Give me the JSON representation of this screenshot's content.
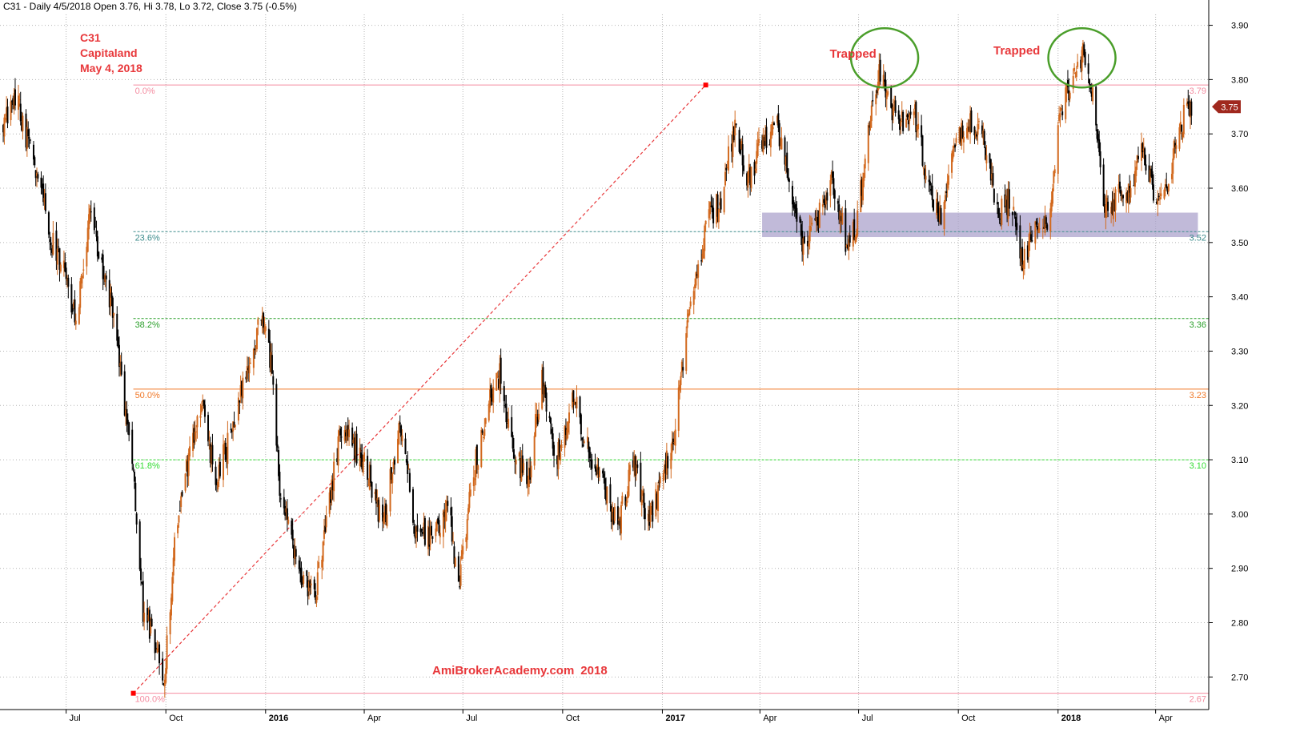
{
  "header": {
    "symbol": "C31",
    "text": "C31 - Daily 4/5/2018 Open 3.76, Hi 3.78, Lo 3.72, Close 3.75 (-0.5%)"
  },
  "title_lines": [
    "C31",
    "Capitaland",
    "May 4, 2018"
  ],
  "annotations": [
    {
      "text": "Trapped",
      "date": "2017-06-28",
      "price": 3.845
    },
    {
      "text": "Trapped",
      "date": "2017-11-26",
      "price": 3.85
    }
  ],
  "watermark": {
    "site": "AmiBrokerAcademy.com",
    "year": "2018"
  },
  "colors": {
    "up_candle": "#d2691e",
    "down_candle": "#000000",
    "grid": "#b4b4b4",
    "fib_0": "#f48ca0",
    "fib_236": "#3c8c8c",
    "fib_382": "#2ca02c",
    "fib_50": "#f07828",
    "fib_618": "#32dc32",
    "fib_100": "#f48ca0",
    "trend_line": "#e8383b",
    "zone": "#aca3cc",
    "circle": "#4a9e2a",
    "last_price_badge": "#a0281e"
  },
  "chart_data": {
    "type": "candlestick",
    "symbol": "C31",
    "ylim": [
      2.64,
      3.92
    ],
    "xlim": [
      "2015-05-01",
      "2018-05-20"
    ],
    "yticks": [
      3.9,
      3.8,
      3.7,
      3.6,
      3.5,
      3.4,
      3.3,
      3.2,
      3.1,
      3.0,
      2.9,
      2.8,
      2.7
    ],
    "xticks": [
      {
        "label": "Jul",
        "date": "2015-07-01"
      },
      {
        "label": "Oct",
        "date": "2015-10-01"
      },
      {
        "label": "2016",
        "date": "2016-01-01"
      },
      {
        "label": "Apr",
        "date": "2016-04-01"
      },
      {
        "label": "Jul",
        "date": "2016-07-01"
      },
      {
        "label": "Oct",
        "date": "2016-10-01"
      },
      {
        "label": "2017",
        "date": "2017-01-01"
      },
      {
        "label": "Apr",
        "date": "2017-04-01"
      },
      {
        "label": "Jul",
        "date": "2017-07-01"
      },
      {
        "label": "Oct",
        "date": "2017-10-01"
      },
      {
        "label": "2018",
        "date": "2018-01-01"
      },
      {
        "label": "Apr",
        "date": "2018-04-01"
      }
    ],
    "grid": true,
    "last": {
      "date": "2018-05-04",
      "open": 3.76,
      "high": 3.78,
      "low": 3.72,
      "close": 3.75,
      "change_pct": -0.5,
      "badge": "3.75"
    },
    "close_path": [
      {
        "date": "2015-05-04",
        "close": 3.72
      },
      {
        "date": "2015-05-14",
        "close": 3.78
      },
      {
        "date": "2015-05-27",
        "close": 3.68
      },
      {
        "date": "2015-06-05",
        "close": 3.63
      },
      {
        "date": "2015-06-18",
        "close": 3.5
      },
      {
        "date": "2015-06-30",
        "close": 3.45
      },
      {
        "date": "2015-07-10",
        "close": 3.35
      },
      {
        "date": "2015-07-22",
        "close": 3.55
      },
      {
        "date": "2015-08-03",
        "close": 3.46
      },
      {
        "date": "2015-08-14",
        "close": 3.37
      },
      {
        "date": "2015-08-25",
        "close": 3.18
      },
      {
        "date": "2015-09-02",
        "close": 3.05
      },
      {
        "date": "2015-09-10",
        "close": 2.82
      },
      {
        "date": "2015-09-22",
        "close": 2.76
      },
      {
        "date": "2015-09-30",
        "close": 2.7
      },
      {
        "date": "2015-10-09",
        "close": 2.95
      },
      {
        "date": "2015-10-20",
        "close": 3.08
      },
      {
        "date": "2015-11-03",
        "close": 3.2
      },
      {
        "date": "2015-11-16",
        "close": 3.06
      },
      {
        "date": "2015-11-30",
        "close": 3.15
      },
      {
        "date": "2015-12-14",
        "close": 3.25
      },
      {
        "date": "2015-12-28",
        "close": 3.37
      },
      {
        "date": "2016-01-06",
        "close": 3.28
      },
      {
        "date": "2016-01-14",
        "close": 3.05
      },
      {
        "date": "2016-01-25",
        "close": 2.95
      },
      {
        "date": "2016-02-05",
        "close": 2.88
      },
      {
        "date": "2016-02-15",
        "close": 2.85
      },
      {
        "date": "2016-02-25",
        "close": 2.96
      },
      {
        "date": "2016-03-09",
        "close": 3.15
      },
      {
        "date": "2016-03-24",
        "close": 3.12
      },
      {
        "date": "2016-04-06",
        "close": 3.07
      },
      {
        "date": "2016-04-18",
        "close": 2.97
      },
      {
        "date": "2016-05-04",
        "close": 3.18
      },
      {
        "date": "2016-05-18",
        "close": 2.97
      },
      {
        "date": "2016-06-02",
        "close": 2.95
      },
      {
        "date": "2016-06-17",
        "close": 3.02
      },
      {
        "date": "2016-06-27",
        "close": 2.87
      },
      {
        "date": "2016-07-11",
        "close": 3.08
      },
      {
        "date": "2016-07-25",
        "close": 3.2
      },
      {
        "date": "2016-08-04",
        "close": 3.26
      },
      {
        "date": "2016-08-17",
        "close": 3.1
      },
      {
        "date": "2016-08-31",
        "close": 3.07
      },
      {
        "date": "2016-09-12",
        "close": 3.25
      },
      {
        "date": "2016-09-26",
        "close": 3.1
      },
      {
        "date": "2016-10-10",
        "close": 3.22
      },
      {
        "date": "2016-10-24",
        "close": 3.12
      },
      {
        "date": "2016-11-07",
        "close": 3.05
      },
      {
        "date": "2016-11-21",
        "close": 2.98
      },
      {
        "date": "2016-12-05",
        "close": 3.1
      },
      {
        "date": "2016-12-19",
        "close": 2.98
      },
      {
        "date": "2016-12-30",
        "close": 3.05
      },
      {
        "date": "2017-01-12",
        "close": 3.15
      },
      {
        "date": "2017-01-23",
        "close": 3.32
      },
      {
        "date": "2017-02-02",
        "close": 3.45
      },
      {
        "date": "2017-02-14",
        "close": 3.55
      },
      {
        "date": "2017-02-24",
        "close": 3.58
      },
      {
        "date": "2017-03-09",
        "close": 3.72
      },
      {
        "date": "2017-03-21",
        "close": 3.62
      },
      {
        "date": "2017-04-03",
        "close": 3.68
      },
      {
        "date": "2017-04-17",
        "close": 3.72
      },
      {
        "date": "2017-04-28",
        "close": 3.62
      },
      {
        "date": "2017-05-12",
        "close": 3.48
      },
      {
        "date": "2017-05-24",
        "close": 3.55
      },
      {
        "date": "2017-06-07",
        "close": 3.62
      },
      {
        "date": "2017-06-19",
        "close": 3.5
      },
      {
        "date": "2017-06-28",
        "close": 3.52
      },
      {
        "date": "2017-07-10",
        "close": 3.7
      },
      {
        "date": "2017-07-21",
        "close": 3.82
      },
      {
        "date": "2017-07-28",
        "close": 3.76
      },
      {
        "date": "2017-08-08",
        "close": 3.72
      },
      {
        "date": "2017-08-22",
        "close": 3.73
      },
      {
        "date": "2017-09-04",
        "close": 3.6
      },
      {
        "date": "2017-09-15",
        "close": 3.55
      },
      {
        "date": "2017-09-28",
        "close": 3.7
      },
      {
        "date": "2017-10-10",
        "close": 3.72
      },
      {
        "date": "2017-10-24",
        "close": 3.7
      },
      {
        "date": "2017-11-06",
        "close": 3.55
      },
      {
        "date": "2017-11-17",
        "close": 3.58
      },
      {
        "date": "2017-11-30",
        "close": 3.46
      },
      {
        "date": "2017-12-11",
        "close": 3.55
      },
      {
        "date": "2017-12-22",
        "close": 3.52
      },
      {
        "date": "2018-01-03",
        "close": 3.75
      },
      {
        "date": "2018-01-15",
        "close": 3.8
      },
      {
        "date": "2018-01-24",
        "close": 3.85
      },
      {
        "date": "2018-02-01",
        "close": 3.78
      },
      {
        "date": "2018-02-05",
        "close": 3.72
      },
      {
        "date": "2018-02-12",
        "close": 3.55
      },
      {
        "date": "2018-02-23",
        "close": 3.58
      },
      {
        "date": "2018-03-08",
        "close": 3.6
      },
      {
        "date": "2018-03-20",
        "close": 3.68
      },
      {
        "date": "2018-04-02",
        "close": 3.55
      },
      {
        "date": "2018-04-13",
        "close": 3.62
      },
      {
        "date": "2018-04-24",
        "close": 3.72
      },
      {
        "date": "2018-05-04",
        "close": 3.75
      }
    ],
    "fibonacci": {
      "start": {
        "date": "2015-09-01",
        "price": 2.67
      },
      "end": {
        "date": "2017-02-10",
        "price": 3.79
      },
      "levels": [
        {
          "pct": "0.0%",
          "price": 3.79,
          "value_label": "3.79",
          "color_key": "fib_0",
          "style": "solid"
        },
        {
          "pct": "23.6%",
          "price": 3.52,
          "value_label": "3.52",
          "color_key": "fib_236",
          "style": "dashed"
        },
        {
          "pct": "38.2%",
          "price": 3.36,
          "value_label": "3.36",
          "color_key": "fib_382",
          "style": "dashed"
        },
        {
          "pct": "50.0%",
          "price": 3.23,
          "value_label": "3.23",
          "color_key": "fib_50",
          "style": "solid"
        },
        {
          "pct": "61.8%",
          "price": 3.1,
          "value_label": "3.10",
          "color_key": "fib_618",
          "style": "dashed"
        },
        {
          "pct": "100.0%",
          "price": 2.67,
          "value_label": "2.67",
          "color_key": "fib_100",
          "style": "solid"
        }
      ]
    },
    "support_zone": {
      "start": "2017-04-03",
      "end": "2018-05-10",
      "low": 3.51,
      "high": 3.555
    },
    "circles": [
      {
        "date": "2017-07-25",
        "price": 3.84
      },
      {
        "date": "2018-01-23",
        "price": 3.84
      }
    ]
  }
}
